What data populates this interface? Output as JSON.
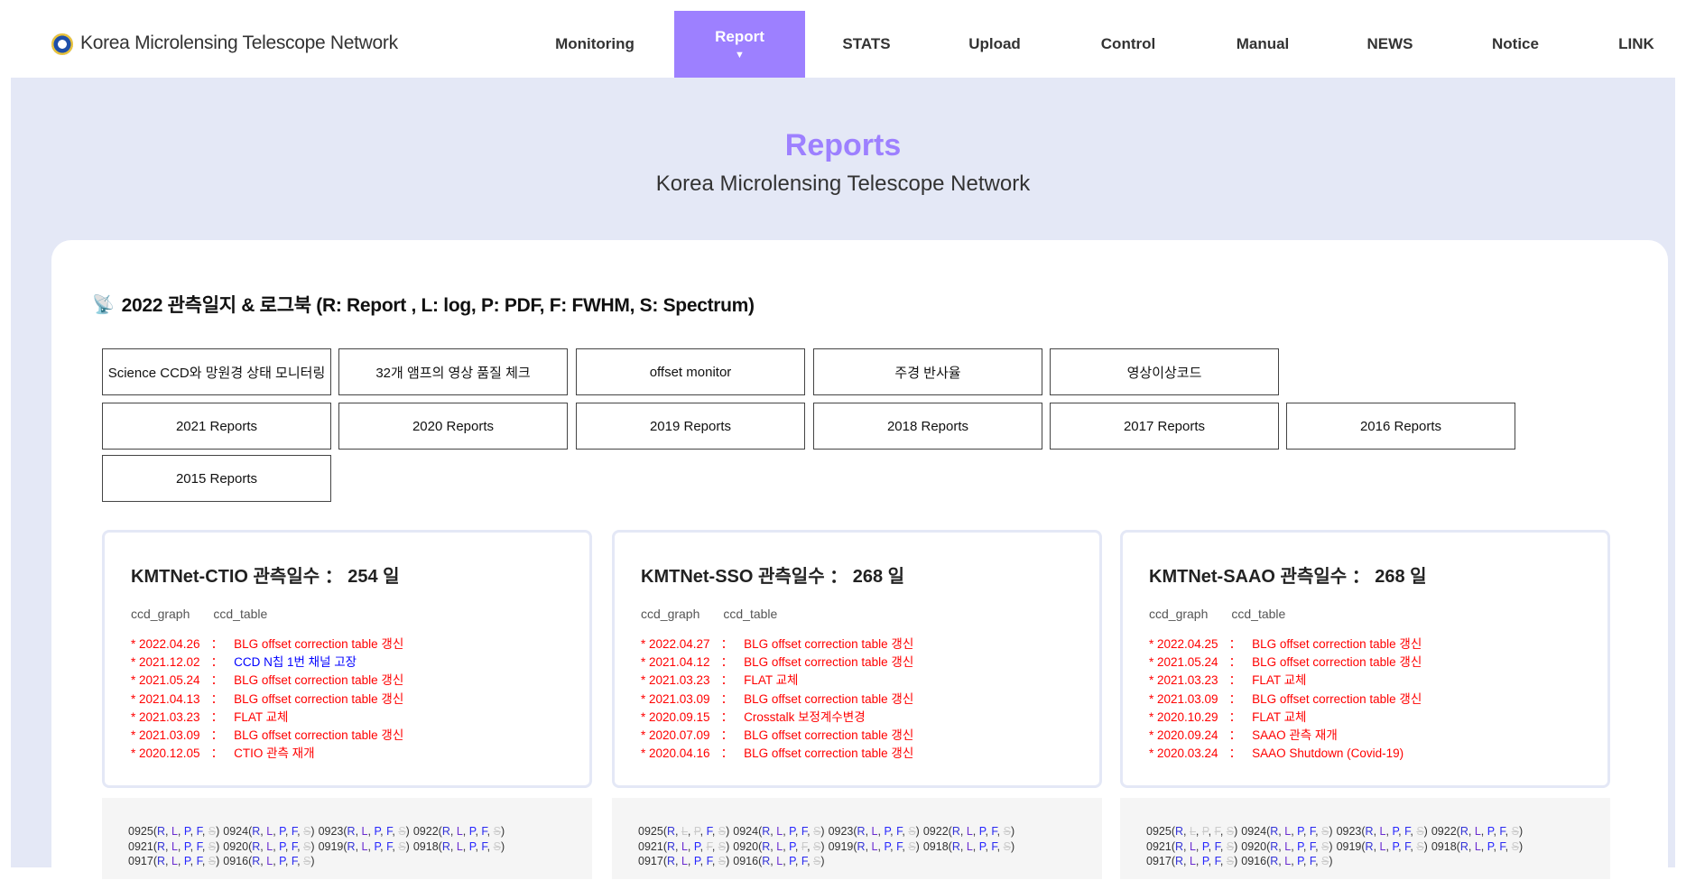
{
  "header": {
    "brand": "Korea Microlensing Telescope Network",
    "logo_icon": "kmtnet-emblem",
    "nav": [
      {
        "label": "Monitoring"
      },
      {
        "label": "Report",
        "active": true,
        "marker": "▼"
      },
      {
        "label": "STATS"
      },
      {
        "label": "Upload"
      },
      {
        "label": "Control"
      },
      {
        "label": "Manual"
      },
      {
        "label": "NEWS"
      },
      {
        "label": "Notice"
      },
      {
        "label": "LINK"
      }
    ]
  },
  "hero": {
    "title": "Reports",
    "subtitle": "Korea Microlensing Telescope Network"
  },
  "section": {
    "icon": "satellite-dish-icon",
    "heading": "2022 관측일지 & 로그북 (R: Report , L: log, P: PDF, F: FWHM, S: Spectrum)"
  },
  "buttons": [
    "Science CCD와 망원경 상태 모니터링",
    "32개 앰프의 영상 품질 체크",
    "offset monitor",
    "주경 반사율",
    "영상이상코드",
    "2021 Reports",
    "2020 Reports",
    "2019 Reports",
    "2018 Reports",
    "2017 Reports",
    "2016 Reports",
    "2015 Reports"
  ],
  "colors": {
    "accent": "#9d80ff",
    "background": "#e4e8f6",
    "log_red": "#ff0000",
    "log_blue": "#0000ff",
    "unavailable": "#cccccc"
  },
  "stations": [
    {
      "title": "KMTNet-CTIO 관측일수  ：  254 일",
      "links": [
        "ccd_graph",
        "ccd_table"
      ],
      "log": [
        {
          "date": "* 2022.04.26",
          "sep": "：",
          "text": "BLG offset correction table 갱신"
        },
        {
          "date": "* 2021.12.02",
          "sep": "：",
          "text": "CCD N칩 1번 채널 고장",
          "color": "blue"
        },
        {
          "date": "* 2021.05.24",
          "sep": "：",
          "text": "BLG offset correction table 갱신"
        },
        {
          "date": "* 2021.04.13",
          "sep": "：",
          "text": "BLG offset correction table 갱신"
        },
        {
          "date": "* 2021.03.23",
          "sep": "：",
          "text": "FLAT 교체"
        },
        {
          "date": "* 2021.03.09",
          "sep": "：",
          "text": "BLG offset correction table 갱신"
        },
        {
          "date": "* 2020.12.05",
          "sep": "：",
          "text": "CTIO 관측 재개"
        }
      ],
      "logbook": [
        {
          "d": "0925",
          "off": [
            "S"
          ]
        },
        {
          "d": "0924",
          "off": [
            "S"
          ]
        },
        {
          "d": "0923",
          "off": [
            "S"
          ]
        },
        {
          "d": "0922",
          "off": [
            "S"
          ]
        },
        {
          "d": "0921",
          "off": [
            "S"
          ]
        },
        {
          "d": "0920",
          "off": [
            "S"
          ]
        },
        {
          "d": "0919",
          "off": [
            "S"
          ]
        },
        {
          "d": "0918",
          "off": [
            "S"
          ]
        },
        {
          "d": "0917",
          "off": [
            "S"
          ]
        },
        {
          "d": "0916",
          "off": [
            "S"
          ]
        }
      ]
    },
    {
      "title": "KMTNet-SSO 관측일수  ：  268 일",
      "links": [
        "ccd_graph",
        "ccd_table"
      ],
      "log": [
        {
          "date": "* 2022.04.27",
          "sep": "：",
          "text": "BLG offset correction table 갱신"
        },
        {
          "date": "* 2021.04.12",
          "sep": "：",
          "text": "BLG offset correction table 갱신"
        },
        {
          "date": "* 2021.03.23",
          "sep": "：",
          "text": "FLAT 교체"
        },
        {
          "date": "* 2021.03.09",
          "sep": "：",
          "text": "BLG offset correction table 갱신"
        },
        {
          "date": "* 2020.09.15",
          "sep": "：",
          "text": "Crosstalk 보정계수변경"
        },
        {
          "date": "* 2020.07.09",
          "sep": "：",
          "text": "BLG offset correction table 갱신"
        },
        {
          "date": "* 2020.04.16",
          "sep": "：",
          "text": "BLG offset correction table 갱신"
        }
      ],
      "logbook": [
        {
          "d": "0925",
          "off": [
            "L",
            "P",
            "S"
          ]
        },
        {
          "d": "0924",
          "off": [
            "S"
          ]
        },
        {
          "d": "0923",
          "off": [
            "S"
          ]
        },
        {
          "d": "0922",
          "off": [
            "S"
          ]
        },
        {
          "d": "0921",
          "off": [
            "F",
            "S"
          ]
        },
        {
          "d": "0920",
          "off": [
            "F",
            "S"
          ]
        },
        {
          "d": "0919",
          "off": [
            "S"
          ]
        },
        {
          "d": "0918",
          "off": [
            "S"
          ]
        },
        {
          "d": "0917",
          "off": [
            "S"
          ]
        },
        {
          "d": "0916",
          "off": [
            "S"
          ]
        }
      ]
    },
    {
      "title": "KMTNet-SAAO 관측일수  ：  268 일",
      "links": [
        "ccd_graph",
        "ccd_table"
      ],
      "log": [
        {
          "date": "* 2022.04.25",
          "sep": "：",
          "text": "BLG offset correction table 갱신"
        },
        {
          "date": "* 2021.05.24",
          "sep": "：",
          "text": "BLG offset correction table 갱신"
        },
        {
          "date": "* 2021.03.23",
          "sep": "：",
          "text": "FLAT 교체"
        },
        {
          "date": "* 2021.03.09",
          "sep": "：",
          "text": "BLG offset correction table 갱신"
        },
        {
          "date": "* 2020.10.29",
          "sep": "：",
          "text": "FLAT 교체"
        },
        {
          "date": "* 2020.09.24",
          "sep": "：",
          "text": "SAAO 관측 재개"
        },
        {
          "date": "* 2020.03.24",
          "sep": "：",
          "text": "SAAO Shutdown (Covid-19)"
        }
      ],
      "logbook": [
        {
          "d": "0925",
          "off": [
            "L",
            "P",
            "F",
            "S"
          ]
        },
        {
          "d": "0924",
          "off": [
            "S"
          ]
        },
        {
          "d": "0923",
          "off": [
            "S"
          ]
        },
        {
          "d": "0922",
          "off": [
            "S"
          ]
        },
        {
          "d": "0921",
          "off": [
            "S"
          ]
        },
        {
          "d": "0920",
          "off": [
            "S"
          ]
        },
        {
          "d": "0919",
          "off": [
            "S"
          ]
        },
        {
          "d": "0918",
          "off": [
            "S"
          ]
        },
        {
          "d": "0917",
          "off": [
            "S"
          ]
        },
        {
          "d": "0916",
          "off": [
            "S"
          ]
        }
      ]
    }
  ],
  "logbook_keys": [
    "R",
    "L",
    "P",
    "F",
    "S"
  ]
}
